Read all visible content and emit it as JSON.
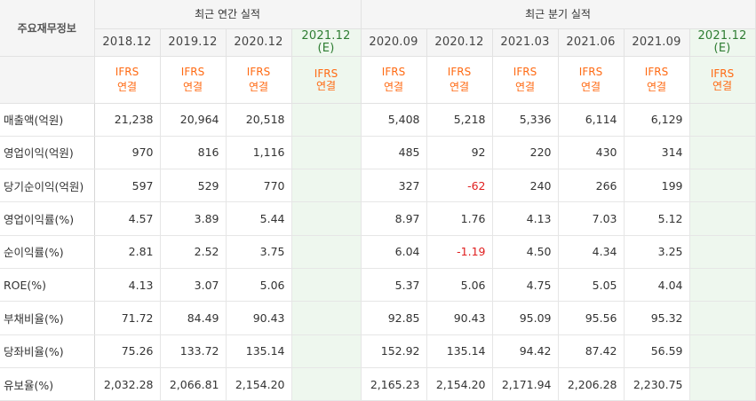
{
  "header": {
    "corner_label": "주요재무정보",
    "annual_group": "최근 연간 실적",
    "quarter_group": "최근 분기 실적",
    "periods": [
      "2018.12",
      "2019.12",
      "2020.12",
      "2021.12",
      "2020.09",
      "2020.12",
      "2021.03",
      "2021.06",
      "2021.09",
      "2021.12"
    ],
    "estimate_suffix": "(E)",
    "ifrs_line1": "IFRS",
    "ifrs_line2": "연결"
  },
  "rows": [
    {
      "label": "매출액(억원)",
      "values": [
        "21,238",
        "20,964",
        "20,518",
        "",
        "5,408",
        "5,218",
        "5,336",
        "6,114",
        "6,129",
        ""
      ]
    },
    {
      "label": "영업이익(억원)",
      "values": [
        "970",
        "816",
        "1,116",
        "",
        "485",
        "92",
        "220",
        "430",
        "314",
        ""
      ]
    },
    {
      "label": "당기순이익(억원)",
      "values": [
        "597",
        "529",
        "770",
        "",
        "327",
        "-62",
        "240",
        "266",
        "199",
        ""
      ]
    },
    {
      "label": "영업이익률(%)",
      "values": [
        "4.57",
        "3.89",
        "5.44",
        "",
        "8.97",
        "1.76",
        "4.13",
        "7.03",
        "5.12",
        ""
      ]
    },
    {
      "label": "순이익률(%)",
      "values": [
        "2.81",
        "2.52",
        "3.75",
        "",
        "6.04",
        "-1.19",
        "4.50",
        "4.34",
        "3.25",
        ""
      ]
    },
    {
      "label": "ROE(%)",
      "values": [
        "4.13",
        "3.07",
        "5.06",
        "",
        "5.37",
        "5.06",
        "4.75",
        "5.05",
        "4.04",
        ""
      ]
    },
    {
      "label": "부채비율(%)",
      "values": [
        "71.72",
        "84.49",
        "90.43",
        "",
        "92.85",
        "90.43",
        "95.09",
        "95.56",
        "95.32",
        ""
      ]
    },
    {
      "label": "당좌비율(%)",
      "values": [
        "75.26",
        "133.72",
        "135.14",
        "",
        "152.92",
        "135.14",
        "94.42",
        "87.42",
        "56.59",
        ""
      ]
    },
    {
      "label": "유보율(%)",
      "values": [
        "2,032.28",
        "2,066.81",
        "2,154.20",
        "",
        "2,165.23",
        "2,154.20",
        "2,171.94",
        "2,206.28",
        "2,230.75",
        ""
      ]
    }
  ],
  "colors": {
    "ifrs": "#ff6a13",
    "estimate_bg": "#eef7ee",
    "estimate_text": "#2e7d32",
    "negative": "#e02020",
    "header_bg": "#f5f5f5"
  }
}
